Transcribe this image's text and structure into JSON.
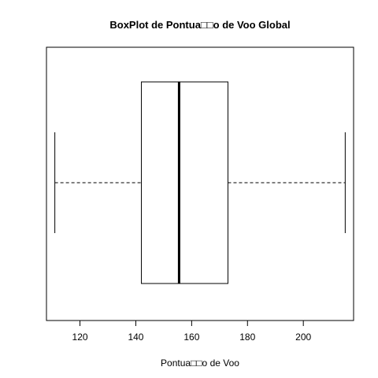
{
  "chart_data": {
    "type": "boxplot",
    "orientation": "horizontal",
    "title": "BoxPlot de Pontua□□o de Voo Global",
    "xlabel": "Pontua□□o de Voo",
    "ylabel": "",
    "xlim": [
      108,
      218
    ],
    "xticks": [
      120,
      140,
      160,
      180,
      200
    ],
    "box": {
      "min": 111,
      "q1": 142,
      "median": 155.5,
      "q3": 173,
      "max": 215
    },
    "grid": false,
    "colors": {
      "stroke": "#000000",
      "background": "#ffffff"
    }
  }
}
